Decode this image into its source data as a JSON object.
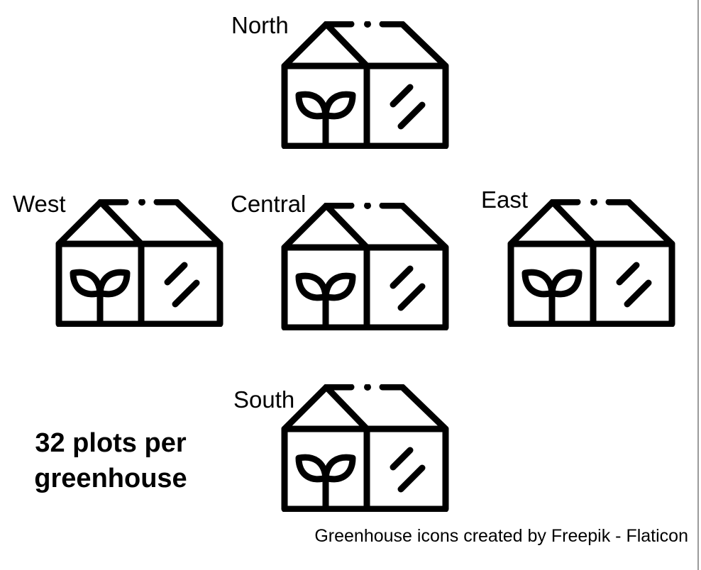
{
  "greenhouses": [
    {
      "id": "north",
      "label": "North"
    },
    {
      "id": "west",
      "label": "West"
    },
    {
      "id": "central",
      "label": "Central"
    },
    {
      "id": "east",
      "label": "East"
    },
    {
      "id": "south",
      "label": "South"
    }
  ],
  "note": {
    "line1": "32 plots per",
    "line2": "greenhouse"
  },
  "credit": "Greenhouse icons created by Freepik - Flaticon",
  "icon": "greenhouse-icon",
  "colors": {
    "stroke": "#000000",
    "background": "#ffffff"
  }
}
